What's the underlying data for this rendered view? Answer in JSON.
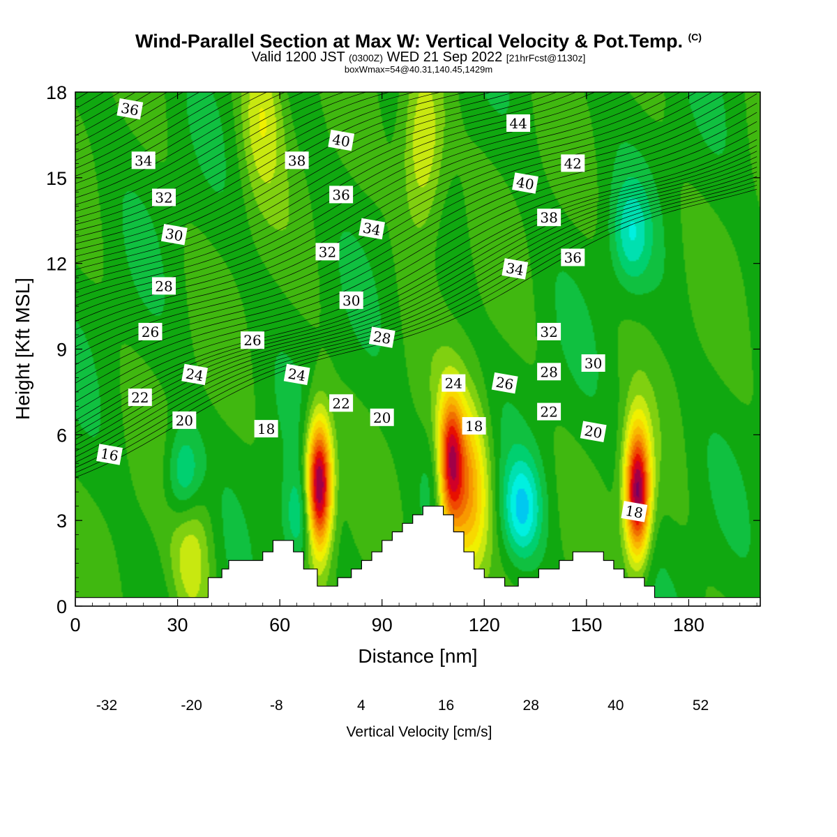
{
  "header": {
    "title": "Wind-Parallel Section at Max W: Vertical Velocity & Pot.Temp.",
    "title_mark": "(C)",
    "subtitle_pre": "Valid 1200 JST",
    "subtitle_zulu": "(0300Z)",
    "subtitle_mid": "WED 21 Sep 2022",
    "subtitle_fcst": "[21hrFcst@1130z]",
    "info": "boxWmax=54@40.31,140.45,1429m"
  },
  "chart_data": {
    "type": "heatmap",
    "xlabel": "Distance [nm]",
    "ylabel": "Height [Kft MSL]",
    "xlim": [
      0,
      201
    ],
    "ylim": [
      0,
      18
    ],
    "xticks": [
      0,
      30,
      60,
      90,
      120,
      150,
      180
    ],
    "yticks": [
      0,
      3,
      6,
      9,
      12,
      15,
      18
    ],
    "colorbar": {
      "label": "Vertical Velocity [cm/s]",
      "tick_labels": [
        "-32",
        "-20",
        "-8",
        "4",
        "16",
        "28",
        "40",
        "52"
      ],
      "bounds": [
        -32,
        56
      ],
      "step": 4,
      "colors": [
        "#0000ff",
        "#0a46f0",
        "#0a8cf0",
        "#00c8f0",
        "#00f0e0",
        "#00e0b0",
        "#00d070",
        "#10c040",
        "#10a810",
        "#40b810",
        "#80d010",
        "#c8e810",
        "#f0f000",
        "#f8d800",
        "#f8b800",
        "#f89800",
        "#f07000",
        "#f04800",
        "#e81000",
        "#d00028",
        "#a00048",
        "#780060"
      ]
    },
    "terrain_kft": [
      [
        0,
        0.3
      ],
      [
        39,
        0.3
      ],
      [
        39,
        1
      ],
      [
        43,
        1
      ],
      [
        43,
        1.3
      ],
      [
        45,
        1.3
      ],
      [
        45,
        1.6
      ],
      [
        55,
        1.6
      ],
      [
        55,
        1.9
      ],
      [
        58,
        1.9
      ],
      [
        58,
        2.3
      ],
      [
        64,
        2.3
      ],
      [
        64,
        1.9
      ],
      [
        67,
        1.9
      ],
      [
        67,
        1.3
      ],
      [
        71,
        1.3
      ],
      [
        71,
        0.7
      ],
      [
        77,
        0.7
      ],
      [
        77,
        1
      ],
      [
        81,
        1
      ],
      [
        81,
        1.3
      ],
      [
        84,
        1.3
      ],
      [
        84,
        1.6
      ],
      [
        87,
        1.6
      ],
      [
        87,
        1.9
      ],
      [
        90,
        1.9
      ],
      [
        90,
        2.3
      ],
      [
        93,
        2.3
      ],
      [
        93,
        2.6
      ],
      [
        96,
        2.6
      ],
      [
        96,
        2.9
      ],
      [
        99,
        2.9
      ],
      [
        99,
        3.2
      ],
      [
        102,
        3.2
      ],
      [
        102,
        3.5
      ],
      [
        108,
        3.5
      ],
      [
        108,
        3.2
      ],
      [
        111,
        3.2
      ],
      [
        111,
        2.6
      ],
      [
        114,
        2.6
      ],
      [
        114,
        1.9
      ],
      [
        117,
        1.9
      ],
      [
        117,
        1.3
      ],
      [
        120,
        1.3
      ],
      [
        120,
        1
      ],
      [
        126,
        1
      ],
      [
        126,
        0.7
      ],
      [
        130,
        0.7
      ],
      [
        130,
        1
      ],
      [
        136,
        1
      ],
      [
        136,
        1.3
      ],
      [
        142,
        1.3
      ],
      [
        142,
        1.6
      ],
      [
        146,
        1.6
      ],
      [
        146,
        1.9
      ],
      [
        155,
        1.9
      ],
      [
        155,
        1.6
      ],
      [
        158,
        1.6
      ],
      [
        158,
        1.3
      ],
      [
        161,
        1.3
      ],
      [
        161,
        1
      ],
      [
        167,
        1
      ],
      [
        167,
        0.7
      ],
      [
        170,
        0.7
      ],
      [
        170,
        0.3
      ],
      [
        201,
        0.3
      ]
    ],
    "updrafts": [
      {
        "x": 71.5,
        "z": 4.2,
        "w": 54
      },
      {
        "x": 110,
        "z": 5.0,
        "w": 38
      },
      {
        "x": 115,
        "z": 4.0,
        "w": 26
      },
      {
        "x": 165,
        "z": 4.0,
        "w": 50
      },
      {
        "x": 34,
        "z": 2.0,
        "w": 12
      },
      {
        "x": 102,
        "z": 16.0,
        "w": 16
      },
      {
        "x": 55,
        "z": 17.5,
        "w": 12
      }
    ],
    "downdrafts": [
      {
        "x": 32,
        "z": 4.5,
        "w": -16
      },
      {
        "x": 66,
        "z": 3.0,
        "w": -12
      },
      {
        "x": 131,
        "z": 3.4,
        "w": -18
      },
      {
        "x": 108,
        "z": 4.5,
        "w": -8
      },
      {
        "x": 163,
        "z": 13,
        "w": -12
      }
    ],
    "theta_labels": [
      {
        "text": "16",
        "x": 10,
        "z": 5.3
      },
      {
        "text": "20",
        "x": 32,
        "z": 6.5
      },
      {
        "text": "22",
        "x": 19,
        "z": 7.3
      },
      {
        "text": "24",
        "x": 35,
        "z": 8.1
      },
      {
        "text": "26",
        "x": 22,
        "z": 9.6
      },
      {
        "text": "28",
        "x": 26,
        "z": 11.2
      },
      {
        "text": "30",
        "x": 29,
        "z": 13.0
      },
      {
        "text": "32",
        "x": 26,
        "z": 14.3
      },
      {
        "text": "34",
        "x": 20,
        "z": 15.6
      },
      {
        "text": "36",
        "x": 16,
        "z": 17.4
      },
      {
        "text": "18",
        "x": 56,
        "z": 6.2
      },
      {
        "text": "26",
        "x": 52,
        "z": 9.3
      },
      {
        "text": "24",
        "x": 65,
        "z": 8.1
      },
      {
        "text": "22",
        "x": 78,
        "z": 7.1
      },
      {
        "text": "20",
        "x": 90,
        "z": 6.6
      },
      {
        "text": "28",
        "x": 90,
        "z": 9.4
      },
      {
        "text": "30",
        "x": 81,
        "z": 10.7
      },
      {
        "text": "32",
        "x": 74,
        "z": 12.4
      },
      {
        "text": "34",
        "x": 87,
        "z": 13.2
      },
      {
        "text": "36",
        "x": 78,
        "z": 14.4
      },
      {
        "text": "38",
        "x": 65,
        "z": 15.6
      },
      {
        "text": "40",
        "x": 78,
        "z": 16.3
      },
      {
        "text": "24",
        "x": 111,
        "z": 7.8
      },
      {
        "text": "18",
        "x": 117,
        "z": 6.3
      },
      {
        "text": "26",
        "x": 126,
        "z": 7.8
      },
      {
        "text": "28",
        "x": 139,
        "z": 8.2
      },
      {
        "text": "22",
        "x": 139,
        "z": 6.8
      },
      {
        "text": "20",
        "x": 152,
        "z": 6.1
      },
      {
        "text": "30",
        "x": 152,
        "z": 8.5
      },
      {
        "text": "32",
        "x": 139,
        "z": 9.6
      },
      {
        "text": "34",
        "x": 129,
        "z": 11.8
      },
      {
        "text": "36",
        "x": 146,
        "z": 12.2
      },
      {
        "text": "38",
        "x": 139,
        "z": 13.6
      },
      {
        "text": "40",
        "x": 132,
        "z": 14.8
      },
      {
        "text": "42",
        "x": 146,
        "z": 15.5
      },
      {
        "text": "44",
        "x": 130,
        "z": 16.9
      },
      {
        "text": "18",
        "x": 164,
        "z": 3.3
      }
    ]
  }
}
